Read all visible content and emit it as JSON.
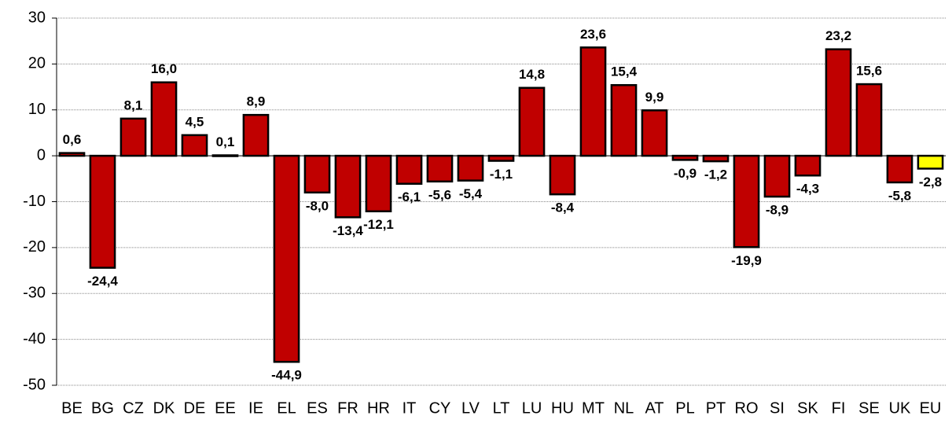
{
  "chart_data": {
    "type": "bar",
    "categories": [
      "BE",
      "BG",
      "CZ",
      "DK",
      "DE",
      "EE",
      "IE",
      "EL",
      "ES",
      "FR",
      "HR",
      "IT",
      "CY",
      "LV",
      "LT",
      "LU",
      "HU",
      "MT",
      "NL",
      "AT",
      "PL",
      "PT",
      "RO",
      "SI",
      "SK",
      "FI",
      "SE",
      "UK",
      "EU"
    ],
    "values": [
      0.6,
      -24.4,
      8.1,
      16.0,
      4.5,
      0.1,
      8.9,
      -44.9,
      -8.0,
      -13.4,
      -12.1,
      -6.1,
      -5.6,
      -5.4,
      -1.1,
      14.8,
      -8.4,
      23.6,
      15.4,
      9.9,
      -0.9,
      -1.2,
      -19.9,
      -8.9,
      -4.3,
      23.2,
      15.6,
      -5.8,
      -2.8
    ],
    "value_labels": [
      "0,6",
      "-24,4",
      "8,1",
      "16,0",
      "4,5",
      "0,1",
      "8,9",
      "-44,9",
      "-8,0",
      "-13,4",
      "-12,1",
      "-6,1",
      "-5,6",
      "-5,4",
      "-1,1",
      "14,8",
      "-8,4",
      "23,6",
      "15,4",
      "9,9",
      "-0,9",
      "-1,2",
      "-19,9",
      "-8,9",
      "-4,3",
      "23,2",
      "15,6",
      "-5,8",
      "-2,8"
    ],
    "colors": [
      "#c00000",
      "#c00000",
      "#c00000",
      "#c00000",
      "#c00000",
      "#c00000",
      "#c00000",
      "#c00000",
      "#c00000",
      "#c00000",
      "#c00000",
      "#c00000",
      "#c00000",
      "#c00000",
      "#c00000",
      "#c00000",
      "#c00000",
      "#c00000",
      "#c00000",
      "#c00000",
      "#c00000",
      "#c00000",
      "#c00000",
      "#c00000",
      "#c00000",
      "#c00000",
      "#c00000",
      "#c00000",
      "#ffff00"
    ],
    "ylim": [
      -50,
      30
    ],
    "yticks": [
      -50,
      -40,
      -30,
      -20,
      -10,
      0,
      10,
      20,
      30
    ],
    "grid": true
  }
}
